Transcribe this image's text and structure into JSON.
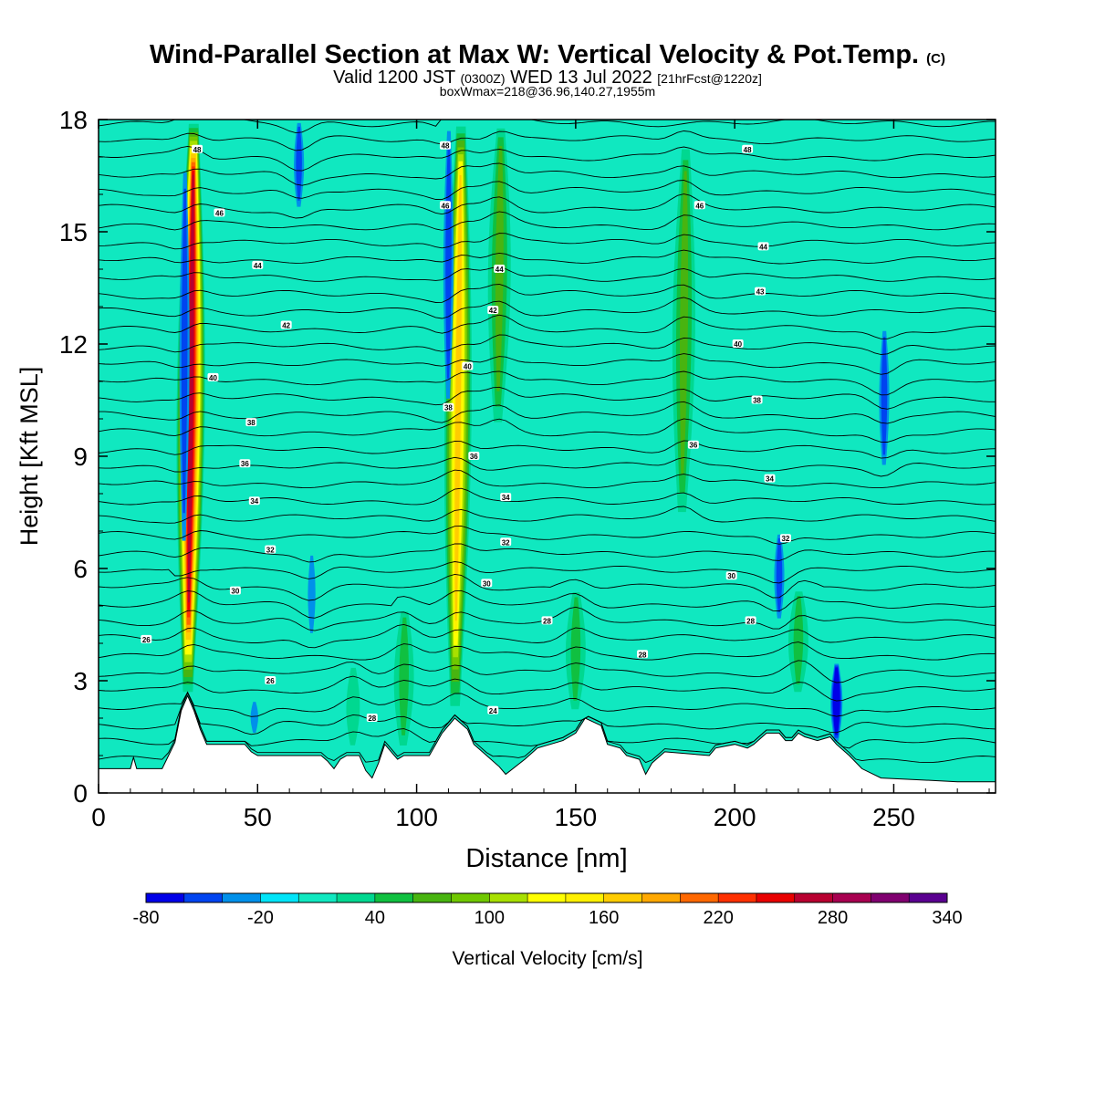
{
  "header": {
    "title": "Wind-Parallel Section at Max W: Vertical Velocity & Pot.Temp.",
    "copyright": "(C)",
    "valid_a": "Valid 1200 JST",
    "valid_b": "(0300Z)",
    "valid_c": "WED 13 Jul 2022",
    "valid_d": "[21hrFcst@1220z]",
    "subtitle2": "boxWmax=218@36.96,140.27,1955m"
  },
  "chart_data": {
    "type": "contour",
    "xlabel": "Distance [nm]",
    "ylabel": "Height [Kft MSL]",
    "xlim": [
      0,
      282
    ],
    "ylim": [
      0,
      18
    ],
    "x_ticks": [
      "0",
      "50",
      "100",
      "150",
      "200",
      "250"
    ],
    "y_ticks": [
      "0",
      "3",
      "6",
      "9",
      "12",
      "15",
      "18"
    ],
    "colorbar": {
      "label": "Vertical Velocity [cm/s]",
      "tick_labels": [
        "-80",
        "-20",
        "40",
        "100",
        "160",
        "220",
        "280",
        "340"
      ],
      "levels": [
        -80,
        -60,
        -40,
        -20,
        0,
        20,
        40,
        60,
        80,
        100,
        120,
        140,
        160,
        180,
        200,
        220,
        240,
        260,
        280,
        300,
        320,
        340
      ],
      "colors": [
        "#0000e8",
        "#0044f0",
        "#0090ea",
        "#00e4f8",
        "#10e8c0",
        "#00d890",
        "#10c040",
        "#48b410",
        "#70c800",
        "#a8e000",
        "#ffff00",
        "#fff000",
        "#ffcc00",
        "#ffa800",
        "#ff6800",
        "#ff3000",
        "#e80000",
        "#b80030",
        "#a80050",
        "#800070",
        "#5a0090"
      ]
    },
    "background_w_cm_s": 0,
    "updrafts": [
      {
        "x": 29,
        "z_bottom": 2.5,
        "z_top": 18,
        "w_max": 260
      },
      {
        "x": 113,
        "z_bottom": 2.0,
        "z_top": 18,
        "w_max": 170
      },
      {
        "x": 126,
        "z_bottom": 9.5,
        "z_top": 18,
        "w_max": 60
      },
      {
        "x": 184,
        "z_bottom": 7.0,
        "z_top": 17.5,
        "w_max": 60
      },
      {
        "x": 220,
        "z_bottom": 2.5,
        "z_top": 5.5,
        "w_max": 50
      },
      {
        "x": 150,
        "z_bottom": 2.0,
        "z_top": 5.5,
        "w_max": 40
      },
      {
        "x": 96,
        "z_bottom": 1.0,
        "z_top": 5.0,
        "w_max": 40
      },
      {
        "x": 80,
        "z_bottom": 1.0,
        "z_top": 3.5,
        "w_max": 30
      }
    ],
    "downdrafts": [
      {
        "x": 27,
        "z_bottom": 6.0,
        "z_top": 17.0,
        "w_min": -40
      },
      {
        "x": 110,
        "z_bottom": 10.0,
        "z_top": 18,
        "w_min": -40
      },
      {
        "x": 63,
        "z_bottom": 15.5,
        "z_top": 18,
        "w_min": -40
      },
      {
        "x": 247,
        "z_bottom": 8.5,
        "z_top": 12.5,
        "w_min": -40
      },
      {
        "x": 214,
        "z_bottom": 4.5,
        "z_top": 7.0,
        "w_min": -40
      },
      {
        "x": 232,
        "z_bottom": 1.3,
        "z_top": 3.5,
        "w_min": -80
      },
      {
        "x": 67,
        "z_bottom": 4.0,
        "z_top": 6.5,
        "w_min": -30
      },
      {
        "x": 49,
        "z_bottom": 1.5,
        "z_top": 2.5,
        "w_min": -30
      }
    ],
    "theta_labels": [
      {
        "text": "26",
        "x": 15,
        "z": 4.1
      },
      {
        "text": "28",
        "x": 86,
        "z": 2.0
      },
      {
        "text": "24",
        "x": 124,
        "z": 2.2
      },
      {
        "text": "26",
        "x": 54,
        "z": 3.0
      },
      {
        "text": "28",
        "x": 141,
        "z": 4.6
      },
      {
        "text": "28",
        "x": 171,
        "z": 3.7
      },
      {
        "text": "28",
        "x": 205,
        "z": 4.6
      },
      {
        "text": "30",
        "x": 43,
        "z": 5.4
      },
      {
        "text": "30",
        "x": 122,
        "z": 5.6
      },
      {
        "text": "30",
        "x": 199,
        "z": 5.8
      },
      {
        "text": "32",
        "x": 54,
        "z": 6.5
      },
      {
        "text": "32",
        "x": 128,
        "z": 6.7
      },
      {
        "text": "32",
        "x": 216,
        "z": 6.8
      },
      {
        "text": "34",
        "x": 49,
        "z": 7.8
      },
      {
        "text": "34",
        "x": 128,
        "z": 7.9
      },
      {
        "text": "34",
        "x": 211,
        "z": 8.4
      },
      {
        "text": "36",
        "x": 46,
        "z": 8.8
      },
      {
        "text": "36",
        "x": 118,
        "z": 9.0
      },
      {
        "text": "36",
        "x": 187,
        "z": 9.3
      },
      {
        "text": "38",
        "x": 48,
        "z": 9.9
      },
      {
        "text": "38",
        "x": 110,
        "z": 10.3
      },
      {
        "text": "38",
        "x": 207,
        "z": 10.5
      },
      {
        "text": "40",
        "x": 36,
        "z": 11.1
      },
      {
        "text": "40",
        "x": 116,
        "z": 11.4
      },
      {
        "text": "40",
        "x": 201,
        "z": 12.0
      },
      {
        "text": "42",
        "x": 59,
        "z": 12.5
      },
      {
        "text": "42",
        "x": 124,
        "z": 12.9
      },
      {
        "text": "43",
        "x": 208,
        "z": 13.4
      },
      {
        "text": "44",
        "x": 50,
        "z": 14.1
      },
      {
        "text": "44",
        "x": 126,
        "z": 14.0
      },
      {
        "text": "44",
        "x": 209,
        "z": 14.6
      },
      {
        "text": "46",
        "x": 38,
        "z": 15.5
      },
      {
        "text": "46",
        "x": 109,
        "z": 15.7
      },
      {
        "text": "46",
        "x": 189,
        "z": 15.7
      },
      {
        "text": "48",
        "x": 31,
        "z": 17.2
      },
      {
        "text": "48",
        "x": 109,
        "z": 17.3
      },
      {
        "text": "48",
        "x": 204,
        "z": 17.2
      }
    ],
    "terrain_nm_kft": [
      [
        0,
        0.65
      ],
      [
        10,
        0.65
      ],
      [
        11,
        0.95
      ],
      [
        12,
        0.65
      ],
      [
        20,
        0.65
      ],
      [
        22,
        1.0
      ],
      [
        24,
        1.35
      ],
      [
        26,
        2.2
      ],
      [
        28,
        2.6
      ],
      [
        30,
        2.2
      ],
      [
        32,
        1.7
      ],
      [
        34,
        1.3
      ],
      [
        46,
        1.3
      ],
      [
        48,
        1.1
      ],
      [
        50,
        1.0
      ],
      [
        55,
        1.0
      ],
      [
        57,
        1.0
      ],
      [
        60,
        1.0
      ],
      [
        70,
        1.0
      ],
      [
        72,
        0.85
      ],
      [
        74,
        0.65
      ],
      [
        76,
        0.9
      ],
      [
        78,
        1.0
      ],
      [
        82,
        1.0
      ],
      [
        84,
        0.6
      ],
      [
        86,
        0.4
      ],
      [
        88,
        0.8
      ],
      [
        90,
        1.3
      ],
      [
        92,
        1.1
      ],
      [
        94,
        0.9
      ],
      [
        96,
        1.0
      ],
      [
        104,
        1.0
      ],
      [
        106,
        1.3
      ],
      [
        108,
        1.6
      ],
      [
        112,
        2.0
      ],
      [
        116,
        1.7
      ],
      [
        118,
        1.3
      ],
      [
        122,
        1.0
      ],
      [
        126,
        0.7
      ],
      [
        128,
        0.5
      ],
      [
        134,
        0.9
      ],
      [
        138,
        1.2
      ],
      [
        142,
        1.3
      ],
      [
        146,
        1.4
      ],
      [
        150,
        1.6
      ],
      [
        153,
        2.0
      ],
      [
        158,
        1.8
      ],
      [
        160,
        1.3
      ],
      [
        164,
        1.2
      ],
      [
        166,
        1.0
      ],
      [
        170,
        0.9
      ],
      [
        172,
        0.5
      ],
      [
        174,
        0.8
      ],
      [
        178,
        1.1
      ],
      [
        192,
        1.0
      ],
      [
        194,
        1.2
      ],
      [
        200,
        1.3
      ],
      [
        204,
        1.2
      ],
      [
        206,
        1.3
      ],
      [
        210,
        1.6
      ],
      [
        214,
        1.6
      ],
      [
        216,
        1.4
      ],
      [
        218,
        1.4
      ],
      [
        220,
        1.6
      ],
      [
        222,
        1.5
      ],
      [
        226,
        1.4
      ],
      [
        230,
        1.5
      ],
      [
        232,
        1.3
      ],
      [
        236,
        1.0
      ],
      [
        240,
        0.65
      ],
      [
        246,
        0.4
      ],
      [
        258,
        0.35
      ],
      [
        270,
        0.3
      ],
      [
        282,
        0.3
      ]
    ]
  }
}
